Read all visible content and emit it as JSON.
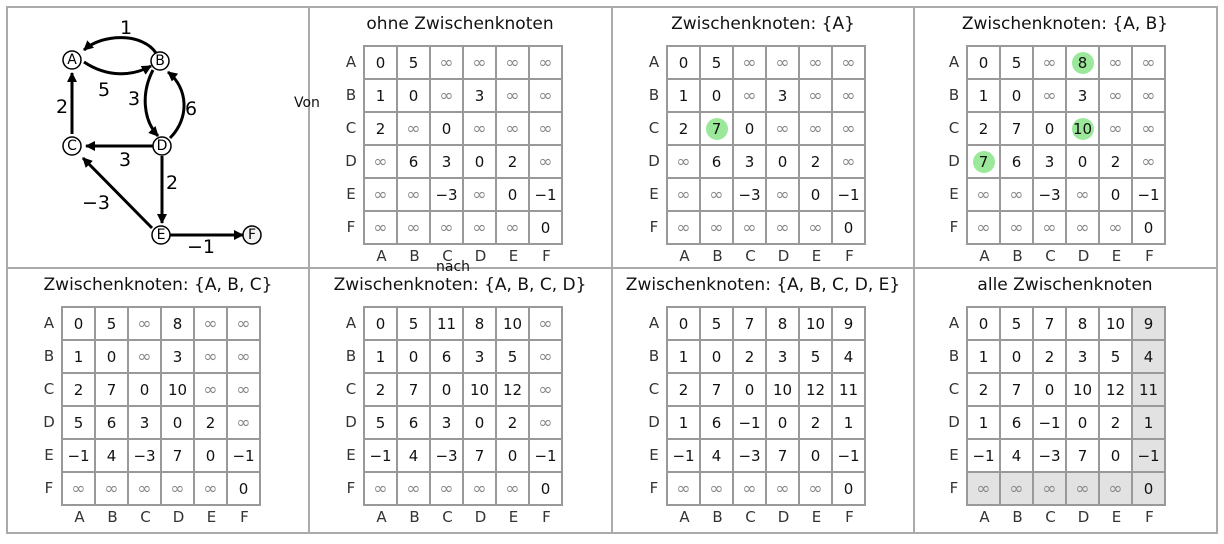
{
  "axis": {
    "from_label": "Von",
    "to_label": "nach"
  },
  "row_labels": [
    "A",
    "B",
    "C",
    "D",
    "E",
    "F"
  ],
  "col_labels": [
    "A",
    "B",
    "C",
    "D",
    "E",
    "F"
  ],
  "graph": {
    "nodes": [
      "A",
      "B",
      "C",
      "D",
      "E",
      "F"
    ],
    "edges": [
      {
        "from": "B",
        "to": "A",
        "weight": "1"
      },
      {
        "from": "A",
        "to": "B",
        "weight": "5"
      },
      {
        "from": "B",
        "to": "D",
        "weight": "3"
      },
      {
        "from": "D",
        "to": "B",
        "weight": "6"
      },
      {
        "from": "C",
        "to": "A",
        "weight": "2"
      },
      {
        "from": "D",
        "to": "C",
        "weight": "3"
      },
      {
        "from": "D",
        "to": "E",
        "weight": "2"
      },
      {
        "from": "E",
        "to": "C",
        "weight": "−3"
      },
      {
        "from": "E",
        "to": "F",
        "weight": "−1"
      }
    ]
  },
  "panels": [
    {
      "title": "ohne Zwischenknoten",
      "matrix": [
        [
          "0",
          "5",
          "∞",
          "∞",
          "∞",
          "∞"
        ],
        [
          "1",
          "0",
          "∞",
          "3",
          "∞",
          "∞"
        ],
        [
          "2",
          "∞",
          "0",
          "∞",
          "∞",
          "∞"
        ],
        [
          "∞",
          "6",
          "3",
          "0",
          "2",
          "∞"
        ],
        [
          "∞",
          "∞",
          "−3",
          "∞",
          "0",
          "−1"
        ],
        [
          "∞",
          "∞",
          "∞",
          "∞",
          "∞",
          "0"
        ]
      ],
      "highlight": []
    },
    {
      "title": "Zwischenknoten: {A}",
      "matrix": [
        [
          "0",
          "5",
          "∞",
          "∞",
          "∞",
          "∞"
        ],
        [
          "1",
          "0",
          "∞",
          "3",
          "∞",
          "∞"
        ],
        [
          "2",
          "7",
          "0",
          "∞",
          "∞",
          "∞"
        ],
        [
          "∞",
          "6",
          "3",
          "0",
          "2",
          "∞"
        ],
        [
          "∞",
          "∞",
          "−3",
          "∞",
          "0",
          "−1"
        ],
        [
          "∞",
          "∞",
          "∞",
          "∞",
          "∞",
          "0"
        ]
      ],
      "highlight": [
        [
          2,
          1
        ]
      ]
    },
    {
      "title": "Zwischenknoten: {A, B}",
      "matrix": [
        [
          "0",
          "5",
          "∞",
          "8",
          "∞",
          "∞"
        ],
        [
          "1",
          "0",
          "∞",
          "3",
          "∞",
          "∞"
        ],
        [
          "2",
          "7",
          "0",
          "10",
          "∞",
          "∞"
        ],
        [
          "7",
          "6",
          "3",
          "0",
          "2",
          "∞"
        ],
        [
          "∞",
          "∞",
          "−3",
          "∞",
          "0",
          "−1"
        ],
        [
          "∞",
          "∞",
          "∞",
          "∞",
          "∞",
          "0"
        ]
      ],
      "highlight": [
        [
          0,
          3
        ],
        [
          2,
          3
        ],
        [
          3,
          0
        ]
      ]
    },
    {
      "title": "Zwischenknoten: {A, B, C}",
      "matrix": [
        [
          "0",
          "5",
          "∞",
          "8",
          "∞",
          "∞"
        ],
        [
          "1",
          "0",
          "∞",
          "3",
          "∞",
          "∞"
        ],
        [
          "2",
          "7",
          "0",
          "10",
          "∞",
          "∞"
        ],
        [
          "5",
          "6",
          "3",
          "0",
          "2",
          "∞"
        ],
        [
          "−1",
          "4",
          "−3",
          "7",
          "0",
          "−1"
        ],
        [
          "∞",
          "∞",
          "∞",
          "∞",
          "∞",
          "0"
        ]
      ],
      "highlight": []
    },
    {
      "title": "Zwischenknoten: {A, B, C, D}",
      "matrix": [
        [
          "0",
          "5",
          "11",
          "8",
          "10",
          "∞"
        ],
        [
          "1",
          "0",
          "6",
          "3",
          "5",
          "∞"
        ],
        [
          "2",
          "7",
          "0",
          "10",
          "12",
          "∞"
        ],
        [
          "5",
          "6",
          "3",
          "0",
          "2",
          "∞"
        ],
        [
          "−1",
          "4",
          "−3",
          "7",
          "0",
          "−1"
        ],
        [
          "∞",
          "∞",
          "∞",
          "∞",
          "∞",
          "0"
        ]
      ],
      "highlight": []
    },
    {
      "title": "Zwischenknoten: {A, B, C, D, E}",
      "matrix": [
        [
          "0",
          "5",
          "7",
          "8",
          "10",
          "9"
        ],
        [
          "1",
          "0",
          "2",
          "3",
          "5",
          "4"
        ],
        [
          "2",
          "7",
          "0",
          "10",
          "12",
          "11"
        ],
        [
          "1",
          "6",
          "−1",
          "0",
          "2",
          "1"
        ],
        [
          "−1",
          "4",
          "−3",
          "7",
          "0",
          "−1"
        ],
        [
          "∞",
          "∞",
          "∞",
          "∞",
          "∞",
          "0"
        ]
      ],
      "highlight": []
    },
    {
      "title": "alle Zwischenknoten",
      "matrix": [
        [
          "0",
          "5",
          "7",
          "8",
          "10",
          "9"
        ],
        [
          "1",
          "0",
          "2",
          "3",
          "5",
          "4"
        ],
        [
          "2",
          "7",
          "0",
          "10",
          "12",
          "11"
        ],
        [
          "1",
          "6",
          "−1",
          "0",
          "2",
          "1"
        ],
        [
          "−1",
          "4",
          "−3",
          "7",
          "0",
          "−1"
        ],
        [
          "∞",
          "∞",
          "∞",
          "∞",
          "∞",
          "0"
        ]
      ],
      "highlight": [],
      "shade_last_col": true,
      "shade_last_row": true
    }
  ],
  "colors": {
    "highlight": "#9be89b",
    "shade": "#e2e2e2",
    "grid": "#999999"
  }
}
